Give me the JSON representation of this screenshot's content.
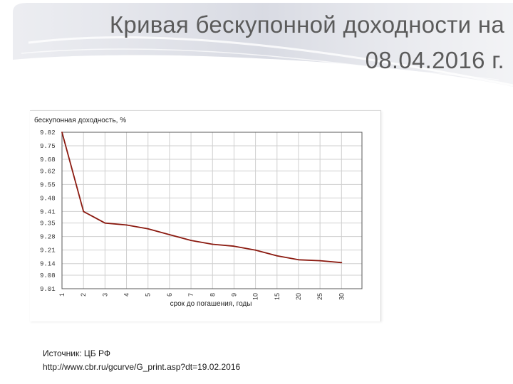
{
  "slide": {
    "title": "Кривая бескупонной доходности на\n08.04.2016 г."
  },
  "source": {
    "label": "Источник: ЦБ РФ",
    "url": "http://www.cbr.ru/gcurve/G_print.asp?dt=19.02.2016"
  },
  "colors": {
    "line": "#8b1a10",
    "grid": "#cfcfcf",
    "axis": "#5a5a5a",
    "title_text": "#5b5b5b"
  },
  "chart_data": {
    "type": "line",
    "title": "бескупонная доходность, %",
    "xlabel": "срок до погашения, годы",
    "ylabel": "бескупонная доходность, %",
    "categories": [
      "1",
      "2",
      "3",
      "4",
      "5",
      "6",
      "7",
      "8",
      "9",
      "10",
      "15",
      "20",
      "25",
      "30"
    ],
    "yticks": [
      "9.01",
      "9.08",
      "9.14",
      "9.21",
      "9.28",
      "9.35",
      "9.41",
      "9.48",
      "9.55",
      "9.62",
      "9.68",
      "9.75",
      "9.82"
    ],
    "ylim": [
      9.01,
      9.82
    ],
    "grid": true,
    "series": [
      {
        "values": [
          9.82,
          9.41,
          9.35,
          9.34,
          9.32,
          9.29,
          9.26,
          9.24,
          9.23,
          9.21,
          9.18,
          9.16,
          9.155,
          9.145
        ]
      }
    ]
  }
}
